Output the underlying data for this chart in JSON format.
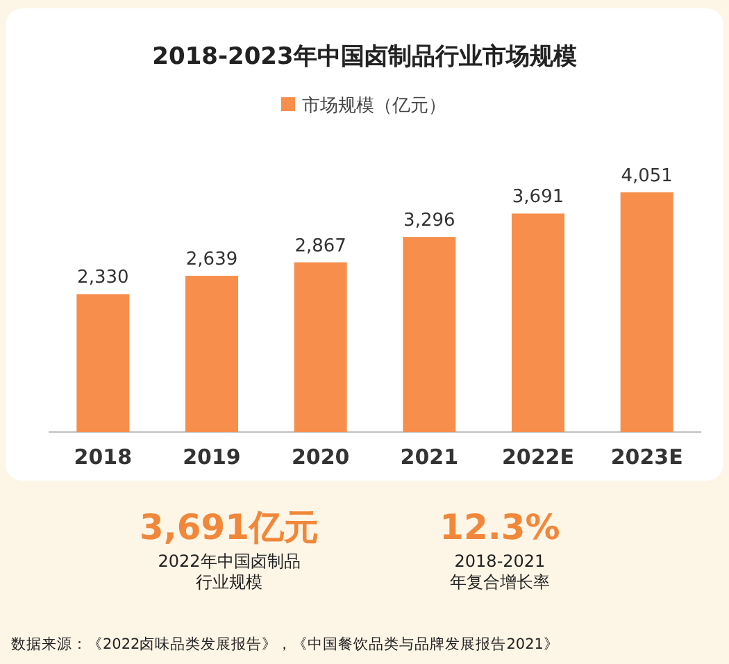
{
  "chart_data": {
    "type": "bar",
    "title": "2018-2023年中国卤制品行业市场规模",
    "categories": [
      "2018",
      "2019",
      "2020",
      "2021",
      "2022E",
      "2023E"
    ],
    "series": [
      {
        "name": "市场规模（亿元）",
        "color": "#f78e4c",
        "values": [
          2330,
          2639,
          2867,
          3296,
          3691,
          4051
        ],
        "value_labels": [
          "2,330",
          "2,639",
          "2,867",
          "3,296",
          "3,691",
          "4,051"
        ]
      }
    ],
    "legend": "top",
    "tick_labels": "x",
    "annotations": [
      "3,691亿元",
      "2022年中国卤制品",
      "行业规模",
      "12.3%",
      "2018-2021",
      "年复合增长率",
      "数据来源：《2022卤味品类发展报告》，《中国餐饮品类与品牌发展报告2021》"
    ]
  }
}
